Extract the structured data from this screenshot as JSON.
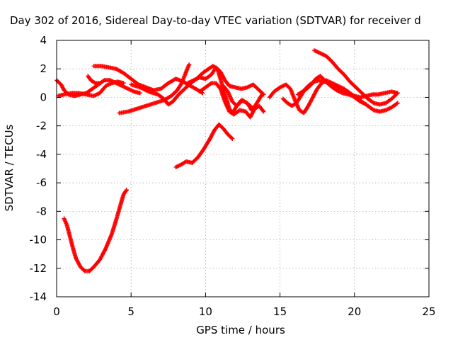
{
  "chart_data": {
    "type": "scatter",
    "title": "Day 302 of 2016, Sidereal Day-to-day VTEC variation (SDTVAR) for receiver d",
    "xlabel": "GPS time / hours",
    "ylabel": "SDTVAR / TECUs",
    "xlim": [
      0,
      25
    ],
    "ylim": [
      -14,
      4
    ],
    "xticks": [
      0,
      5,
      10,
      15,
      20,
      25
    ],
    "yticks": [
      -14,
      -12,
      -10,
      -8,
      -6,
      -4,
      -2,
      0,
      2,
      4
    ],
    "grid": true,
    "marker": "plus",
    "color": "#ff0000",
    "series": [
      {
        "points": [
          [
            0.5,
            -8.5
          ],
          [
            0.7,
            -9.0
          ],
          [
            0.9,
            -9.8
          ],
          [
            1.1,
            -10.6
          ],
          [
            1.3,
            -11.3
          ],
          [
            1.6,
            -11.9
          ],
          [
            1.9,
            -12.2
          ],
          [
            2.2,
            -12.2
          ],
          [
            2.5,
            -11.9
          ],
          [
            2.9,
            -11.4
          ],
          [
            3.3,
            -10.6
          ],
          [
            3.7,
            -9.6
          ],
          [
            4.0,
            -8.6
          ],
          [
            4.3,
            -7.5
          ],
          [
            4.5,
            -6.8
          ],
          [
            4.7,
            -6.5
          ]
        ]
      },
      {
        "points": [
          [
            8.0,
            -4.9
          ],
          [
            8.4,
            -4.7
          ],
          [
            8.7,
            -4.5
          ],
          [
            9.1,
            -4.6
          ],
          [
            9.5,
            -4.2
          ],
          [
            9.9,
            -3.6
          ],
          [
            10.3,
            -2.9
          ],
          [
            10.6,
            -2.3
          ],
          [
            10.9,
            -1.9
          ],
          [
            11.2,
            -2.2
          ],
          [
            11.5,
            -2.6
          ],
          [
            11.8,
            -2.9
          ]
        ]
      },
      {
        "points": [
          [
            0.0,
            1.2
          ],
          [
            0.3,
            0.9
          ],
          [
            0.5,
            0.5
          ],
          [
            0.8,
            0.2
          ],
          [
            1.2,
            0.1
          ],
          [
            1.6,
            0.2
          ],
          [
            2.0,
            0.3
          ],
          [
            2.4,
            0.6
          ],
          [
            2.8,
            0.9
          ],
          [
            3.2,
            1.2
          ],
          [
            3.6,
            1.2
          ],
          [
            4.0,
            1.0
          ],
          [
            4.4,
            0.8
          ],
          [
            4.8,
            0.6
          ],
          [
            5.2,
            0.4
          ],
          [
            5.6,
            0.3
          ]
        ]
      },
      {
        "points": [
          [
            0.1,
            0.1
          ],
          [
            0.5,
            0.2
          ],
          [
            1.0,
            0.3
          ],
          [
            1.5,
            0.3
          ],
          [
            2.0,
            0.2
          ],
          [
            2.5,
            0.1
          ],
          [
            2.9,
            0.3
          ],
          [
            3.3,
            0.8
          ],
          [
            3.7,
            1.0
          ],
          [
            4.1,
            1.1
          ],
          [
            4.5,
            1.0
          ]
        ]
      },
      {
        "points": [
          [
            2.1,
            1.5
          ],
          [
            2.3,
            1.2
          ],
          [
            2.6,
            1.0
          ],
          [
            2.9,
            1.0
          ]
        ]
      },
      {
        "points": [
          [
            2.5,
            2.2
          ],
          [
            3.0,
            2.2
          ],
          [
            3.5,
            2.1
          ],
          [
            4.0,
            2.0
          ],
          [
            4.5,
            1.7
          ],
          [
            5.0,
            1.3
          ],
          [
            5.5,
            0.9
          ],
          [
            6.0,
            0.7
          ],
          [
            6.5,
            0.5
          ],
          [
            7.0,
            0.6
          ],
          [
            7.5,
            1.0
          ],
          [
            8.0,
            1.3
          ],
          [
            8.5,
            1.1
          ],
          [
            9.0,
            0.8
          ],
          [
            9.5,
            0.5
          ],
          [
            9.8,
            0.3
          ]
        ]
      },
      {
        "points": [
          [
            4.2,
            -1.1
          ],
          [
            4.8,
            -1.0
          ],
          [
            5.4,
            -0.8
          ],
          [
            6.0,
            -0.6
          ],
          [
            6.6,
            -0.4
          ],
          [
            7.2,
            -0.2
          ],
          [
            7.7,
            0.1
          ],
          [
            8.1,
            0.5
          ],
          [
            8.4,
            1.0
          ],
          [
            8.7,
            1.8
          ],
          [
            8.9,
            2.3
          ]
        ]
      },
      {
        "points": [
          [
            5.0,
            0.9
          ],
          [
            5.6,
            0.7
          ],
          [
            6.2,
            0.4
          ],
          [
            6.8,
            0.2
          ],
          [
            7.2,
            -0.1
          ],
          [
            7.5,
            -0.5
          ],
          [
            7.8,
            -0.3
          ],
          [
            8.2,
            0.2
          ],
          [
            8.6,
            0.6
          ],
          [
            9.0,
            1.0
          ],
          [
            9.4,
            1.3
          ],
          [
            9.8,
            1.7
          ],
          [
            10.2,
            2.0
          ],
          [
            10.5,
            2.2
          ],
          [
            10.8,
            2.0
          ],
          [
            11.0,
            1.3
          ],
          [
            11.2,
            0.5
          ],
          [
            11.4,
            -0.1
          ],
          [
            11.6,
            -0.8
          ],
          [
            11.8,
            -1.1
          ],
          [
            12.1,
            -0.6
          ],
          [
            12.4,
            -0.2
          ],
          [
            12.8,
            -0.4
          ],
          [
            13.1,
            -0.9
          ]
        ]
      },
      {
        "points": [
          [
            8.8,
            1.0
          ],
          [
            9.2,
            1.2
          ],
          [
            9.6,
            1.4
          ],
          [
            10.0,
            1.3
          ],
          [
            10.4,
            1.6
          ],
          [
            10.7,
            2.1
          ],
          [
            11.0,
            1.8
          ],
          [
            11.3,
            1.2
          ],
          [
            11.6,
            0.8
          ],
          [
            12.0,
            0.7
          ],
          [
            12.4,
            0.6
          ],
          [
            12.8,
            0.7
          ],
          [
            13.2,
            0.9
          ],
          [
            13.6,
            0.5
          ],
          [
            13.9,
            0.2
          ]
        ]
      },
      {
        "points": [
          [
            9.6,
            0.4
          ],
          [
            10.0,
            0.7
          ],
          [
            10.4,
            1.0
          ],
          [
            10.7,
            1.0
          ],
          [
            11.0,
            0.6
          ],
          [
            11.3,
            -0.3
          ],
          [
            11.6,
            -1.0
          ],
          [
            11.9,
            -1.2
          ],
          [
            12.3,
            -0.9
          ],
          [
            12.7,
            -1.0
          ],
          [
            13.0,
            -1.4
          ],
          [
            13.3,
            -0.8
          ],
          [
            13.6,
            -0.6
          ],
          [
            13.9,
            -1.0
          ]
        ]
      },
      {
        "points": [
          [
            11.2,
            0.8
          ],
          [
            11.5,
            0.4
          ],
          [
            11.8,
            -0.3
          ],
          [
            12.1,
            -0.6
          ],
          [
            12.5,
            -0.2
          ],
          [
            12.9,
            -0.5
          ],
          [
            13.2,
            -0.8
          ],
          [
            13.5,
            -0.3
          ],
          [
            13.8,
            0.2
          ]
        ]
      },
      {
        "points": [
          [
            14.3,
            0.0
          ],
          [
            14.6,
            0.4
          ],
          [
            15.0,
            0.7
          ],
          [
            15.4,
            0.9
          ],
          [
            15.7,
            0.6
          ],
          [
            16.0,
            -0.2
          ],
          [
            16.3,
            -0.9
          ],
          [
            16.6,
            -1.1
          ],
          [
            16.9,
            -0.6
          ],
          [
            17.2,
            0.0
          ],
          [
            17.5,
            0.6
          ],
          [
            17.8,
            1.0
          ],
          [
            18.1,
            1.2
          ],
          [
            18.5,
            1.0
          ],
          [
            18.9,
            0.8
          ],
          [
            19.3,
            0.6
          ],
          [
            19.7,
            0.3
          ],
          [
            20.1,
            0.0
          ],
          [
            20.5,
            -0.3
          ],
          [
            20.9,
            -0.6
          ],
          [
            21.3,
            -0.9
          ],
          [
            21.7,
            -1.0
          ],
          [
            22.1,
            -0.9
          ],
          [
            22.5,
            -0.7
          ],
          [
            22.9,
            -0.4
          ]
        ]
      },
      {
        "points": [
          [
            16.2,
            0.2
          ],
          [
            16.5,
            0.4
          ],
          [
            16.8,
            0.6
          ],
          [
            17.1,
            0.9
          ],
          [
            17.4,
            1.3
          ],
          [
            17.7,
            1.5
          ],
          [
            18.0,
            1.2
          ],
          [
            18.4,
            0.8
          ],
          [
            18.8,
            0.5
          ],
          [
            19.2,
            0.3
          ],
          [
            19.6,
            0.2
          ],
          [
            20.0,
            0.1
          ],
          [
            20.4,
            0.0
          ],
          [
            20.8,
            0.1
          ],
          [
            21.2,
            0.2
          ],
          [
            21.6,
            0.2
          ],
          [
            22.0,
            0.3
          ],
          [
            22.5,
            0.4
          ],
          [
            22.9,
            0.3
          ]
        ]
      },
      {
        "points": [
          [
            17.3,
            3.3
          ],
          [
            17.7,
            3.1
          ],
          [
            18.1,
            2.9
          ],
          [
            18.5,
            2.5
          ],
          [
            18.9,
            2.0
          ],
          [
            19.3,
            1.6
          ],
          [
            19.7,
            1.1
          ],
          [
            20.1,
            0.7
          ],
          [
            20.5,
            0.3
          ],
          [
            20.9,
            -0.1
          ],
          [
            21.3,
            -0.4
          ],
          [
            21.7,
            -0.5
          ],
          [
            22.1,
            -0.4
          ],
          [
            22.5,
            -0.1
          ],
          [
            22.9,
            0.3
          ]
        ]
      },
      {
        "points": [
          [
            15.2,
            -0.1
          ],
          [
            15.5,
            -0.4
          ],
          [
            15.8,
            -0.6
          ],
          [
            16.1,
            -0.4
          ],
          [
            16.4,
            0.1
          ],
          [
            16.7,
            0.6
          ],
          [
            17.0,
            0.9
          ],
          [
            17.3,
            1.1
          ],
          [
            17.6,
            1.2
          ],
          [
            18.0,
            1.1
          ],
          [
            18.4,
            0.9
          ],
          [
            18.8,
            0.7
          ],
          [
            19.2,
            0.5
          ],
          [
            19.6,
            0.3
          ],
          [
            20.0,
            0.0
          ],
          [
            20.4,
            -0.3
          ],
          [
            20.8,
            -0.5
          ]
        ]
      }
    ]
  }
}
